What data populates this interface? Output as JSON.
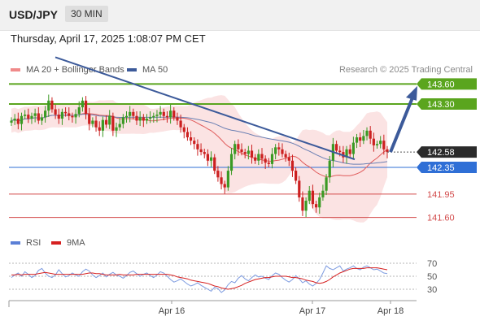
{
  "header": {
    "symbol": "USD/JPY",
    "timeframe": "30 MIN"
  },
  "timestamp": "Thursday, April 17, 2025 1:08:07 PM CET",
  "legend": {
    "bb_label": "MA 20 + Bollinger Bands",
    "ma50_label": "MA 50",
    "credit": "Research © 2025 Trading Central"
  },
  "rsi_legend": {
    "rsi_label": "RSI",
    "ma9_label": "9MA"
  },
  "colors": {
    "resistance": "#5aa51e",
    "support_blue": "#2f6fd6",
    "support_red": "#d24a4a",
    "trend": "#3c5a9a",
    "ma20": "#e05b5b",
    "bands": "#fadede",
    "candle_up": "#3b9a24",
    "candle_down": "#cc2020"
  },
  "chart_data": {
    "type": "candlestick",
    "ylim": [
      141.4,
      143.75
    ],
    "levels": [
      {
        "value": 143.6,
        "label": "143.60",
        "style": "resistance"
      },
      {
        "value": 143.3,
        "label": "143.30",
        "style": "resistance"
      },
      {
        "value": 142.35,
        "label": "142.35",
        "style": "pivot"
      },
      {
        "value": 141.95,
        "label": "141.95",
        "style": "support"
      },
      {
        "value": 141.6,
        "label": "141.60",
        "style": "support"
      }
    ],
    "last_price": {
      "value": 142.58,
      "label": "142.58"
    },
    "x_ticks": [
      "Apr 16",
      "Apr 17",
      "Apr 18"
    ],
    "trendline": [
      [
        144.0,
        0
      ],
      [
        142.47,
        1
      ]
    ],
    "arrow": {
      "from": 142.58,
      "to": 143.52
    },
    "closes": [
      143.05,
      143.08,
      143.0,
      143.12,
      143.14,
      143.08,
      143.12,
      143.16,
      143.05,
      143.1,
      143.2,
      143.35,
      143.22,
      143.14,
      143.08,
      143.18,
      143.16,
      143.12,
      143.1,
      143.15,
      143.25,
      143.35,
      143.15,
      143.0,
      143.05,
      142.95,
      142.9,
      143.06,
      142.99,
      143.12,
      142.9,
      142.95,
      143.0,
      143.1,
      143.12,
      143.18,
      143.12,
      143.05,
      143.1,
      143.05,
      143.08,
      143.1,
      143.12,
      143.14,
      143.18,
      143.12,
      143.1,
      143.2,
      143.1,
      143.05,
      142.95,
      142.88,
      142.8,
      142.75,
      142.7,
      142.62,
      142.58,
      142.55,
      142.45,
      142.5,
      142.3,
      142.2,
      142.1,
      142.05,
      142.3,
      142.55,
      142.7,
      142.62,
      142.58,
      142.55,
      142.6,
      142.5,
      142.45,
      142.55,
      142.48,
      142.42,
      142.4,
      142.55,
      142.65,
      142.62,
      142.55,
      142.5,
      142.45,
      142.3,
      142.15,
      141.9,
      141.7,
      141.85,
      142.0,
      141.8,
      141.75,
      141.9,
      142.0,
      142.2,
      142.45,
      142.7,
      142.6,
      142.58,
      142.5,
      142.62,
      142.55,
      142.72,
      142.8,
      142.75,
      142.82,
      142.9,
      142.78,
      142.68,
      142.7,
      142.75,
      142.62,
      142.58
    ],
    "rsi": {
      "ylim": [
        15,
        85
      ],
      "ticks": [
        "70",
        "50",
        "30"
      ],
      "levels": [
        70,
        50,
        30
      ],
      "rsi": [
        48,
        52,
        55,
        50,
        57,
        53,
        48,
        51,
        59,
        62,
        55,
        50,
        48,
        52,
        60,
        54,
        49,
        51,
        55,
        52,
        50,
        57,
        61,
        58,
        52,
        48,
        51,
        55,
        49,
        53,
        56,
        52,
        50,
        47,
        51,
        56,
        58,
        54,
        50,
        53,
        55,
        51,
        48,
        52,
        57,
        55,
        50,
        45,
        41,
        43,
        46,
        42,
        38,
        35,
        37,
        40,
        36,
        33,
        30,
        27,
        33,
        31,
        25,
        29,
        37,
        42,
        40,
        47,
        51,
        46,
        43,
        48,
        52,
        49,
        50,
        47,
        45,
        51,
        55,
        53,
        48,
        44,
        41,
        45,
        51,
        46,
        40,
        43,
        38,
        35,
        39,
        45,
        55,
        66,
        62,
        60,
        63,
        66,
        58,
        61,
        63,
        66,
        62,
        60,
        64,
        66,
        63,
        60,
        61,
        58,
        55,
        54
      ],
      "ma9": [
        52,
        52,
        53,
        52,
        53,
        53,
        53,
        53,
        54,
        55,
        56,
        55,
        54,
        53,
        53,
        53,
        53,
        53,
        53,
        53,
        53,
        53,
        54,
        55,
        55,
        54,
        54,
        53,
        52,
        52,
        52,
        52,
        53,
        52,
        52,
        52,
        52,
        53,
        53,
        53,
        53,
        53,
        53,
        53,
        53,
        53,
        53,
        52,
        51,
        49,
        48,
        47,
        46,
        44,
        43,
        42,
        41,
        40,
        39,
        37,
        35,
        34,
        32,
        31,
        30,
        31,
        32,
        34,
        36,
        39,
        41,
        43,
        45,
        46,
        47,
        48,
        48,
        49,
        50,
        50,
        50,
        50,
        49,
        48,
        48,
        47,
        46,
        44,
        43,
        42,
        40,
        39,
        40,
        42,
        45,
        49,
        52,
        55,
        57,
        59,
        61,
        62,
        62,
        62,
        62,
        63,
        63,
        63,
        63,
        62,
        61,
        60
      ]
    }
  }
}
